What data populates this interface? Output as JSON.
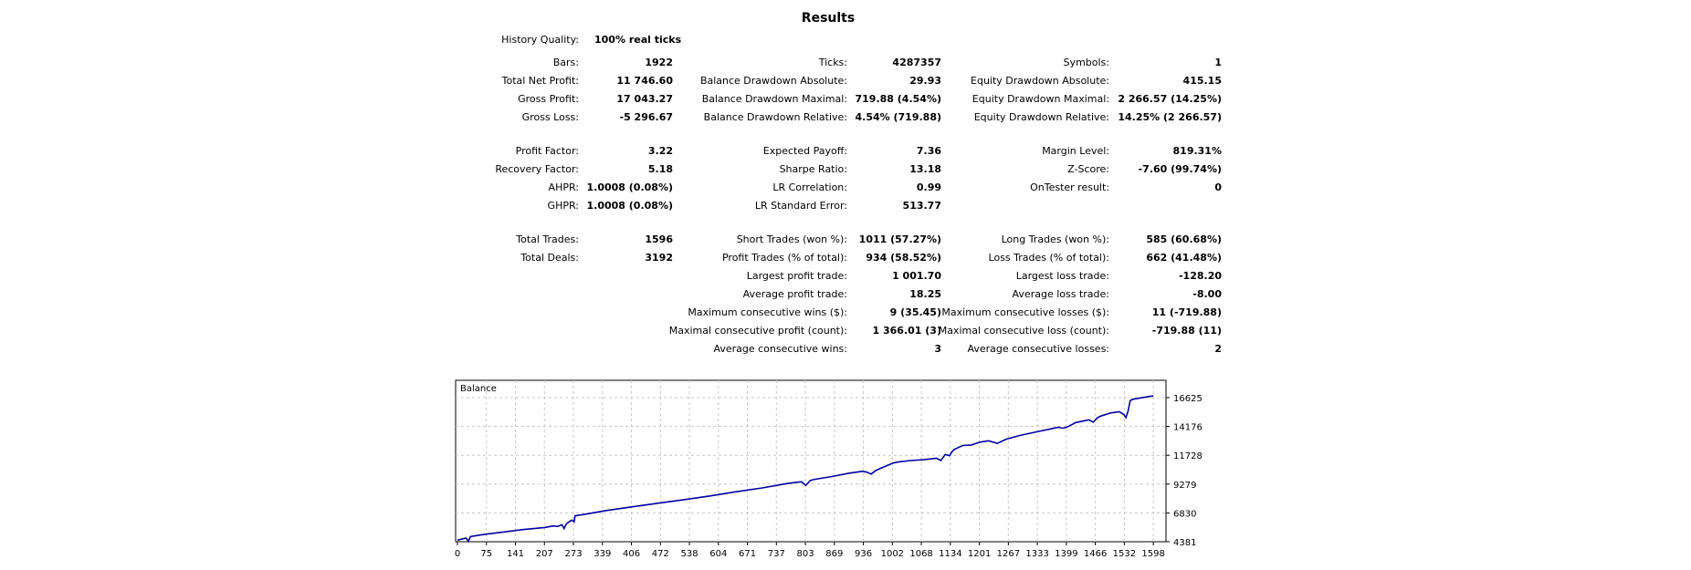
{
  "report": {
    "title": "Results",
    "history_quality": {
      "label": "History Quality:",
      "value": "100% real ticks"
    },
    "rows": [
      {
        "top": 62,
        "c1": [
          "Bars:",
          "1922"
        ],
        "c2": [
          "Ticks:",
          "4287357"
        ],
        "c3": [
          "Symbols:",
          "1"
        ]
      },
      {
        "top": 82,
        "c1": [
          "Total Net Profit:",
          "11 746.60"
        ],
        "c2": [
          "Balance Drawdown Absolute:",
          "29.93"
        ],
        "c3": [
          "Equity Drawdown Absolute:",
          "415.15"
        ]
      },
      {
        "top": 102,
        "c1": [
          "Gross Profit:",
          "17 043.27"
        ],
        "c2": [
          "Balance Drawdown Maximal:",
          "719.88 (4.54%)"
        ],
        "c3": [
          "Equity Drawdown Maximal:",
          "2 266.57 (14.25%)"
        ]
      },
      {
        "top": 122,
        "c1": [
          "Gross Loss:",
          "-5 296.67"
        ],
        "c2": [
          "Balance Drawdown Relative:",
          "4.54% (719.88)"
        ],
        "c3": [
          "Equity Drawdown Relative:",
          "14.25% (2 266.57)"
        ]
      },
      {
        "top": 159,
        "c1": [
          "Profit Factor:",
          "3.22"
        ],
        "c2": [
          "Expected Payoff:",
          "7.36"
        ],
        "c3": [
          "Margin Level:",
          "819.31%"
        ]
      },
      {
        "top": 179,
        "c1": [
          "Recovery Factor:",
          "5.18"
        ],
        "c2": [
          "Sharpe Ratio:",
          "13.18"
        ],
        "c3": [
          "Z-Score:",
          "-7.60 (99.74%)"
        ]
      },
      {
        "top": 199,
        "c1": [
          "AHPR:",
          "1.0008 (0.08%)"
        ],
        "c2": [
          "LR Correlation:",
          "0.99"
        ],
        "c3": [
          "OnTester result:",
          "0"
        ]
      },
      {
        "top": 219,
        "c1": [
          "GHPR:",
          "1.0008 (0.08%)"
        ],
        "c2": [
          "LR Standard Error:",
          "513.77"
        ],
        "c3": null
      },
      {
        "top": 256,
        "c1": [
          "Total Trades:",
          "1596"
        ],
        "c2": [
          "Short Trades (won %):",
          "1011 (57.27%)"
        ],
        "c3": [
          "Long Trades (won %):",
          "585 (60.68%)"
        ]
      },
      {
        "top": 276,
        "c1": [
          "Total Deals:",
          "3192"
        ],
        "c2": [
          "Profit Trades (% of total):",
          "934 (58.52%)"
        ],
        "c3": [
          "Loss Trades (% of total):",
          "662 (41.48%)"
        ]
      },
      {
        "top": 296,
        "c1": null,
        "c2": [
          "Largest profit trade:",
          "1 001.70"
        ],
        "c3": [
          "Largest loss trade:",
          "-128.20"
        ]
      },
      {
        "top": 316,
        "c1": null,
        "c2": [
          "Average profit trade:",
          "18.25"
        ],
        "c3": [
          "Average loss trade:",
          "-8.00"
        ]
      },
      {
        "top": 336,
        "c1": null,
        "c2": [
          "Maximum consecutive wins ($):",
          "9 (35.45)"
        ],
        "c3": [
          "Maximum consecutive losses ($):",
          "11 (-719.88)"
        ]
      },
      {
        "top": 356,
        "c1": null,
        "c2": [
          "Maximal consecutive profit (count):",
          "1 366.01 (3)"
        ],
        "c3": [
          "Maximal consecutive loss (count):",
          "-719.88 (11)"
        ]
      },
      {
        "top": 376,
        "c1": null,
        "c2": [
          "Average consecutive wins:",
          "3"
        ],
        "c3": [
          "Average consecutive losses:",
          "2"
        ]
      }
    ]
  },
  "chart_data": {
    "type": "line",
    "title": "Balance",
    "color": "#0000a0",
    "grid": true,
    "xlim": [
      0,
      1600
    ],
    "ylim": [
      4381,
      17300
    ],
    "x_ticks": [
      "0",
      "75",
      "141",
      "207",
      "273",
      "339",
      "406",
      "472",
      "538",
      "604",
      "671",
      "737",
      "803",
      "869",
      "936",
      "1002",
      "1068",
      "1134",
      "1201",
      "1267",
      "1333",
      "1399",
      "1466",
      "1532",
      "1598"
    ],
    "y_ticks": [
      "16625",
      "14176",
      "11728",
      "9279",
      "6830",
      "4381"
    ],
    "series": [
      {
        "x": [
          0,
          20,
          25,
          30,
          60,
          100,
          150,
          200,
          220,
          230,
          240,
          245,
          250,
          262,
          268,
          270,
          300,
          340,
          400,
          460,
          520,
          580,
          640,
          700,
          760,
          790,
          800,
          810,
          820,
          860,
          900,
          930,
          940,
          950,
          960,
          970,
          1000,
          1010,
          1040,
          1070,
          1100,
          1110,
          1120,
          1130,
          1135,
          1140,
          1160,
          1180,
          1200,
          1220,
          1240,
          1260,
          1290,
          1330,
          1380,
          1390,
          1400,
          1420,
          1450,
          1460,
          1470,
          1480,
          1490,
          1500,
          1520,
          1530,
          1535,
          1540,
          1545,
          1550,
          1570,
          1598
        ],
        "y": [
          4510,
          4690,
          4420,
          4820,
          4990,
          5180,
          5410,
          5590,
          5720,
          5680,
          5820,
          5500,
          5900,
          6220,
          6080,
          6580,
          6760,
          7020,
          7340,
          7650,
          7950,
          8270,
          8630,
          8950,
          9350,
          9480,
          9160,
          9580,
          9680,
          9920,
          10210,
          10360,
          10290,
          10130,
          10420,
          10590,
          11060,
          11150,
          11280,
          11350,
          11480,
          11280,
          11790,
          11690,
          11990,
          12210,
          12560,
          12600,
          12840,
          12960,
          12740,
          13090,
          13400,
          13720,
          14110,
          14020,
          14120,
          14510,
          14740,
          14540,
          14930,
          15090,
          15200,
          15320,
          15420,
          15200,
          14930,
          15480,
          16360,
          16480,
          16610,
          16770
        ]
      }
    ]
  }
}
